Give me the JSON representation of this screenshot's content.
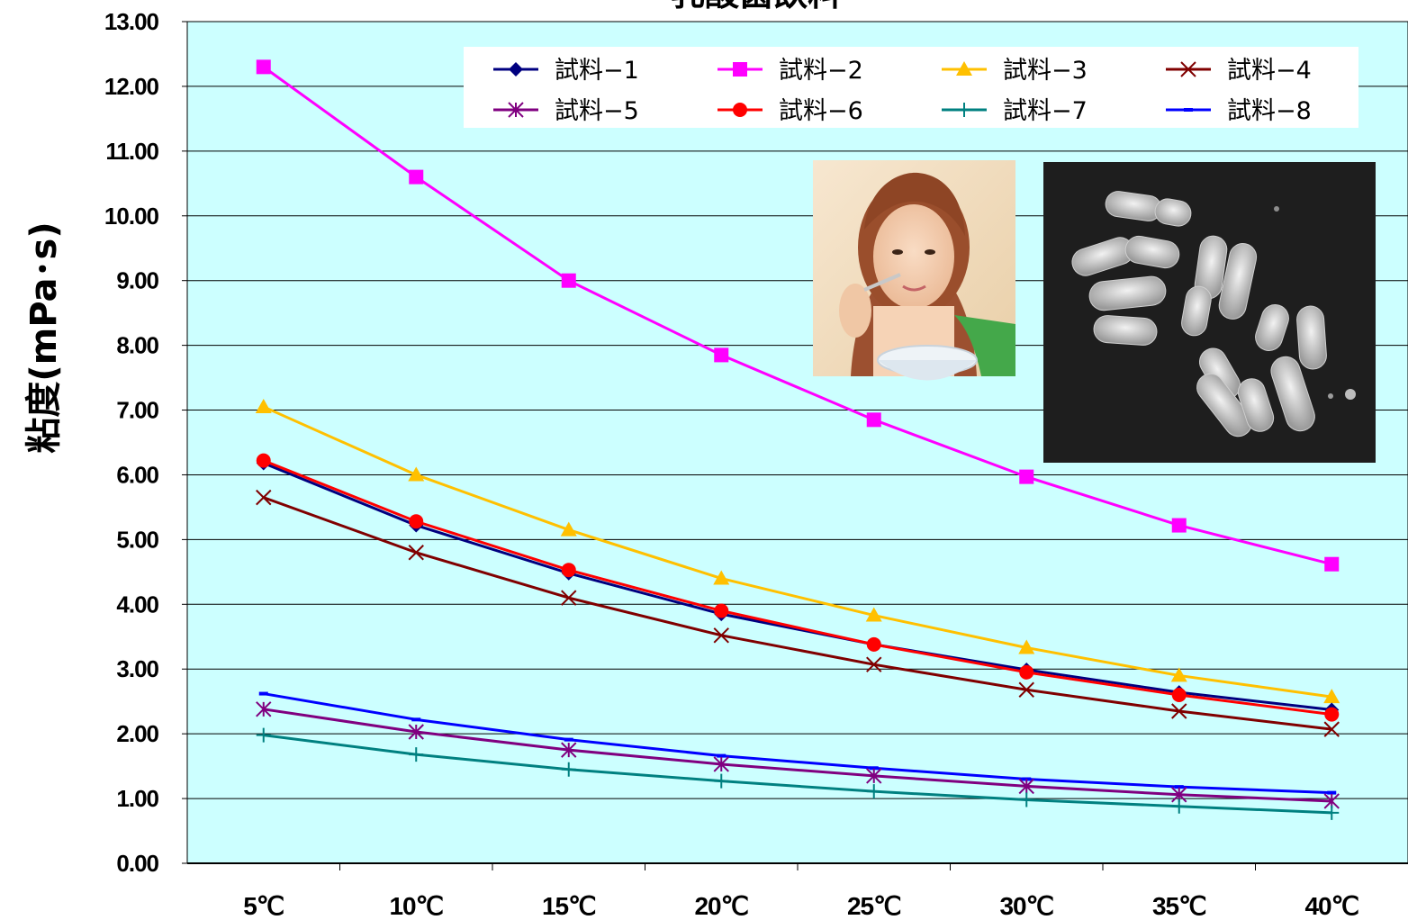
{
  "chart_data": {
    "type": "line",
    "title": "乳酸菌飲料",
    "ylabel": "粘度(mPa･s)",
    "xlabel": "",
    "categories": [
      "5℃",
      "10℃",
      "15℃",
      "20℃",
      "25℃",
      "30℃",
      "35℃",
      "40℃"
    ],
    "ylim": [
      0,
      13
    ],
    "ytick_labels": [
      "0.00",
      "1.00",
      "2.00",
      "3.00",
      "4.00",
      "5.00",
      "6.00",
      "7.00",
      "8.00",
      "9.00",
      "10.00",
      "11.00",
      "12.00",
      "13.00"
    ],
    "grid": true,
    "legend_position": "top-right",
    "plot_background": "#ccffff",
    "series": [
      {
        "name": "試料−1",
        "color": "#000080",
        "marker": "diamond",
        "values": [
          6.18,
          5.22,
          4.48,
          3.85,
          3.38,
          2.99,
          2.64,
          2.37
        ]
      },
      {
        "name": "試料−2",
        "color": "#ff00ff",
        "marker": "square",
        "values": [
          12.3,
          10.6,
          9.0,
          7.85,
          6.85,
          5.97,
          5.22,
          4.62
        ]
      },
      {
        "name": "試料−3",
        "color": "#ffc000",
        "marker": "triangle",
        "values": [
          7.05,
          6.0,
          5.15,
          4.4,
          3.83,
          3.33,
          2.9,
          2.57
        ]
      },
      {
        "name": "試料−4",
        "color": "#800000",
        "marker": "x",
        "values": [
          5.65,
          4.8,
          4.1,
          3.52,
          3.07,
          2.68,
          2.35,
          2.07
        ]
      },
      {
        "name": "試料−5",
        "color": "#800080",
        "marker": "star",
        "values": [
          2.38,
          2.03,
          1.75,
          1.53,
          1.35,
          1.19,
          1.06,
          0.96
        ]
      },
      {
        "name": "試料−6",
        "color": "#ff0000",
        "marker": "circle",
        "values": [
          6.22,
          5.28,
          4.53,
          3.9,
          3.38,
          2.95,
          2.6,
          2.3
        ]
      },
      {
        "name": "試料−7",
        "color": "#008080",
        "marker": "plus",
        "values": [
          1.98,
          1.68,
          1.45,
          1.27,
          1.11,
          0.98,
          0.88,
          0.78
        ]
      },
      {
        "name": "試料−8",
        "color": "#0000ff",
        "marker": "dash",
        "values": [
          2.62,
          2.22,
          1.91,
          1.66,
          1.47,
          1.3,
          1.18,
          1.09
        ]
      }
    ]
  },
  "images": {
    "photo_left": "woman-eating-yogurt",
    "photo_right": "lactic-acid-bacteria-micrograph"
  }
}
